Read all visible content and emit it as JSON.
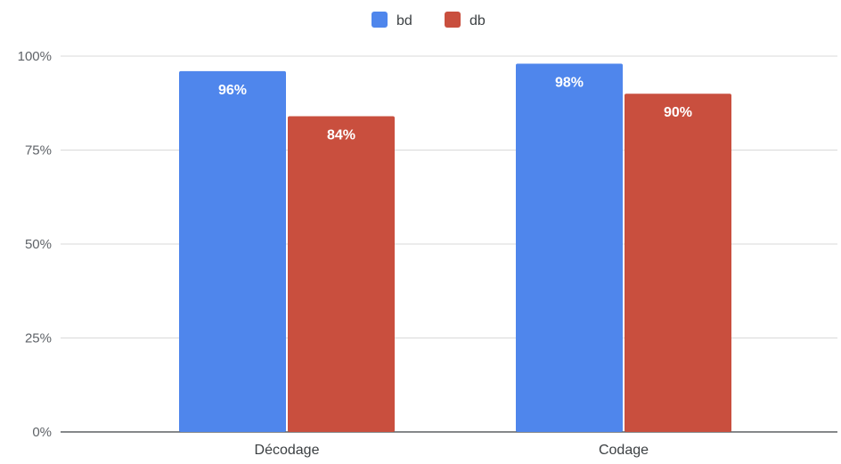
{
  "chart_data": {
    "type": "bar",
    "title": "",
    "xlabel": "",
    "ylabel": "",
    "categories": [
      "Décodage",
      "Codage"
    ],
    "series": [
      {
        "name": "bd",
        "color": "#4f86ec",
        "values": [
          96,
          98
        ],
        "labels": [
          "96%",
          "98%"
        ]
      },
      {
        "name": "db",
        "color": "#c94f3e",
        "values": [
          84,
          90
        ],
        "labels": [
          "84%",
          "90%"
        ]
      }
    ],
    "ylim": [
      0,
      100
    ],
    "yticks": [
      0,
      25,
      50,
      75,
      100
    ],
    "ytick_labels": [
      "0%",
      "25%",
      "50%",
      "75%",
      "100%"
    ],
    "grid": true,
    "legend_position": "top-center"
  }
}
